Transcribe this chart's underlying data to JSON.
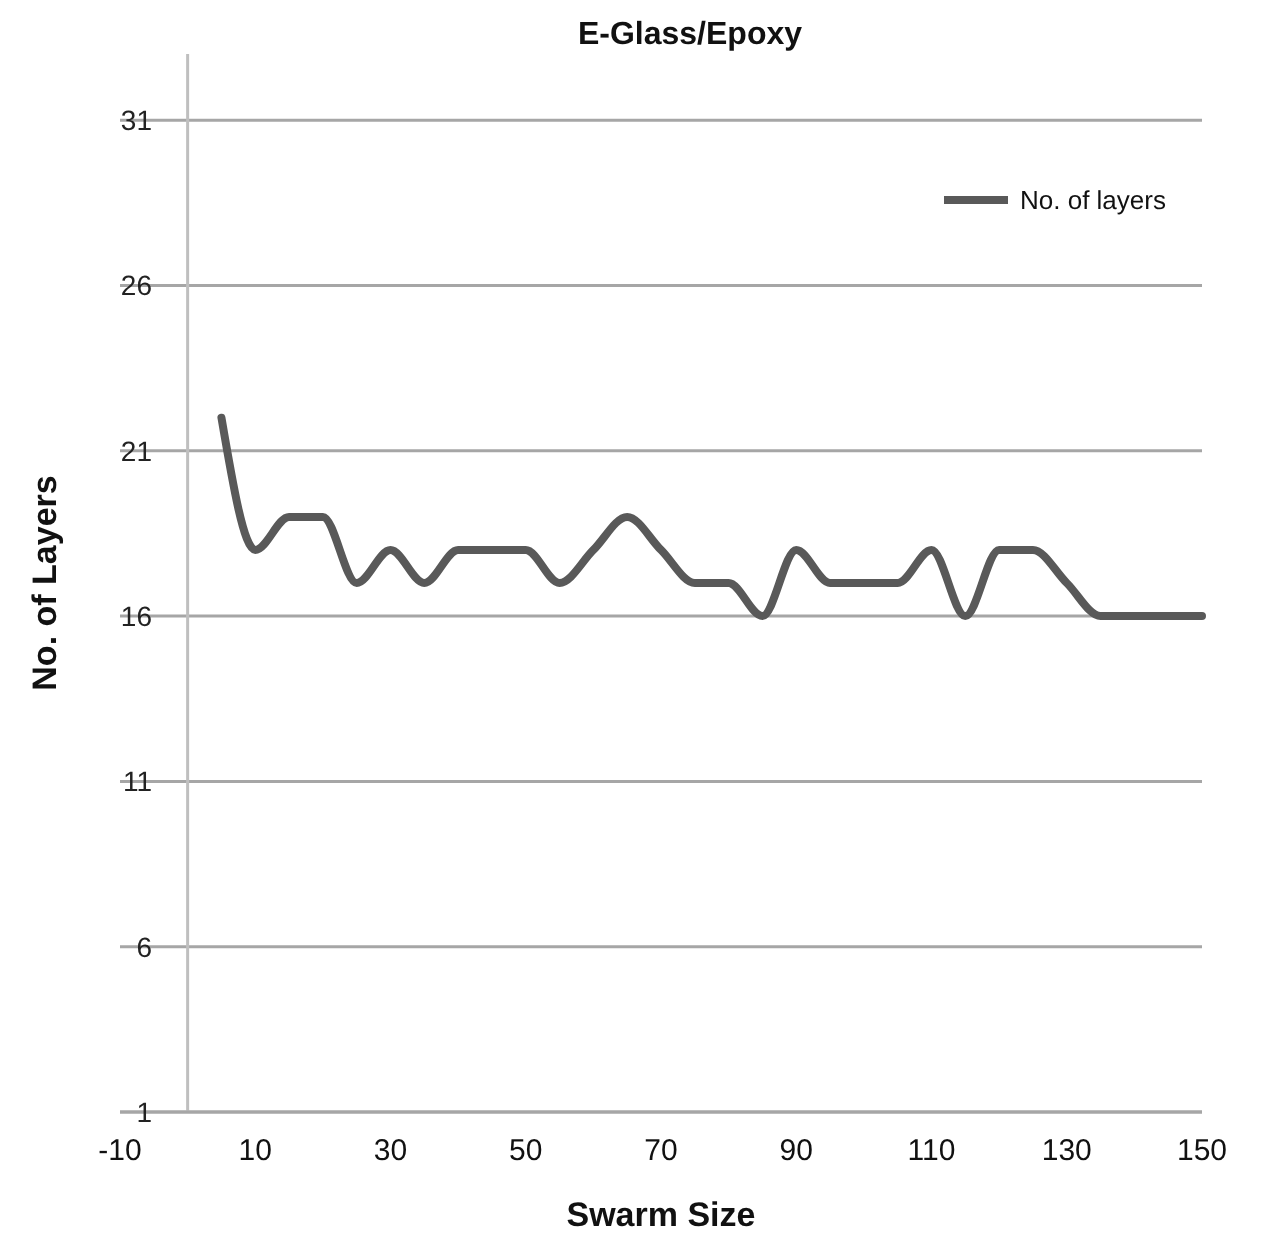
{
  "chart_data": {
    "type": "line",
    "title": "E-Glass/Epoxy",
    "xlabel": "Swarm Size",
    "ylabel": "No. of Layers",
    "x": [
      5,
      10,
      15,
      20,
      25,
      30,
      35,
      40,
      45,
      50,
      55,
      60,
      65,
      70,
      75,
      80,
      85,
      90,
      95,
      100,
      105,
      110,
      115,
      120,
      125,
      130,
      135,
      140,
      145,
      150
    ],
    "series": [
      {
        "name": "No. of layers",
        "color": "#595959",
        "values": [
          22,
          18,
          19,
          19,
          17,
          18,
          17,
          18,
          18,
          18,
          17,
          18,
          19,
          18,
          17,
          17,
          16,
          18,
          17,
          17,
          17,
          18,
          16,
          18,
          18,
          17,
          16,
          16,
          16,
          16
        ]
      }
    ],
    "xlim": [
      -10,
      150
    ],
    "xticks": [
      -10,
      10,
      30,
      50,
      70,
      90,
      110,
      130,
      150
    ],
    "ylim": [
      1,
      33
    ],
    "yticks": [
      1,
      6,
      11,
      16,
      21,
      26,
      31
    ],
    "grid": "y",
    "legend": "top right",
    "marker": "none",
    "line_style": "solid"
  }
}
